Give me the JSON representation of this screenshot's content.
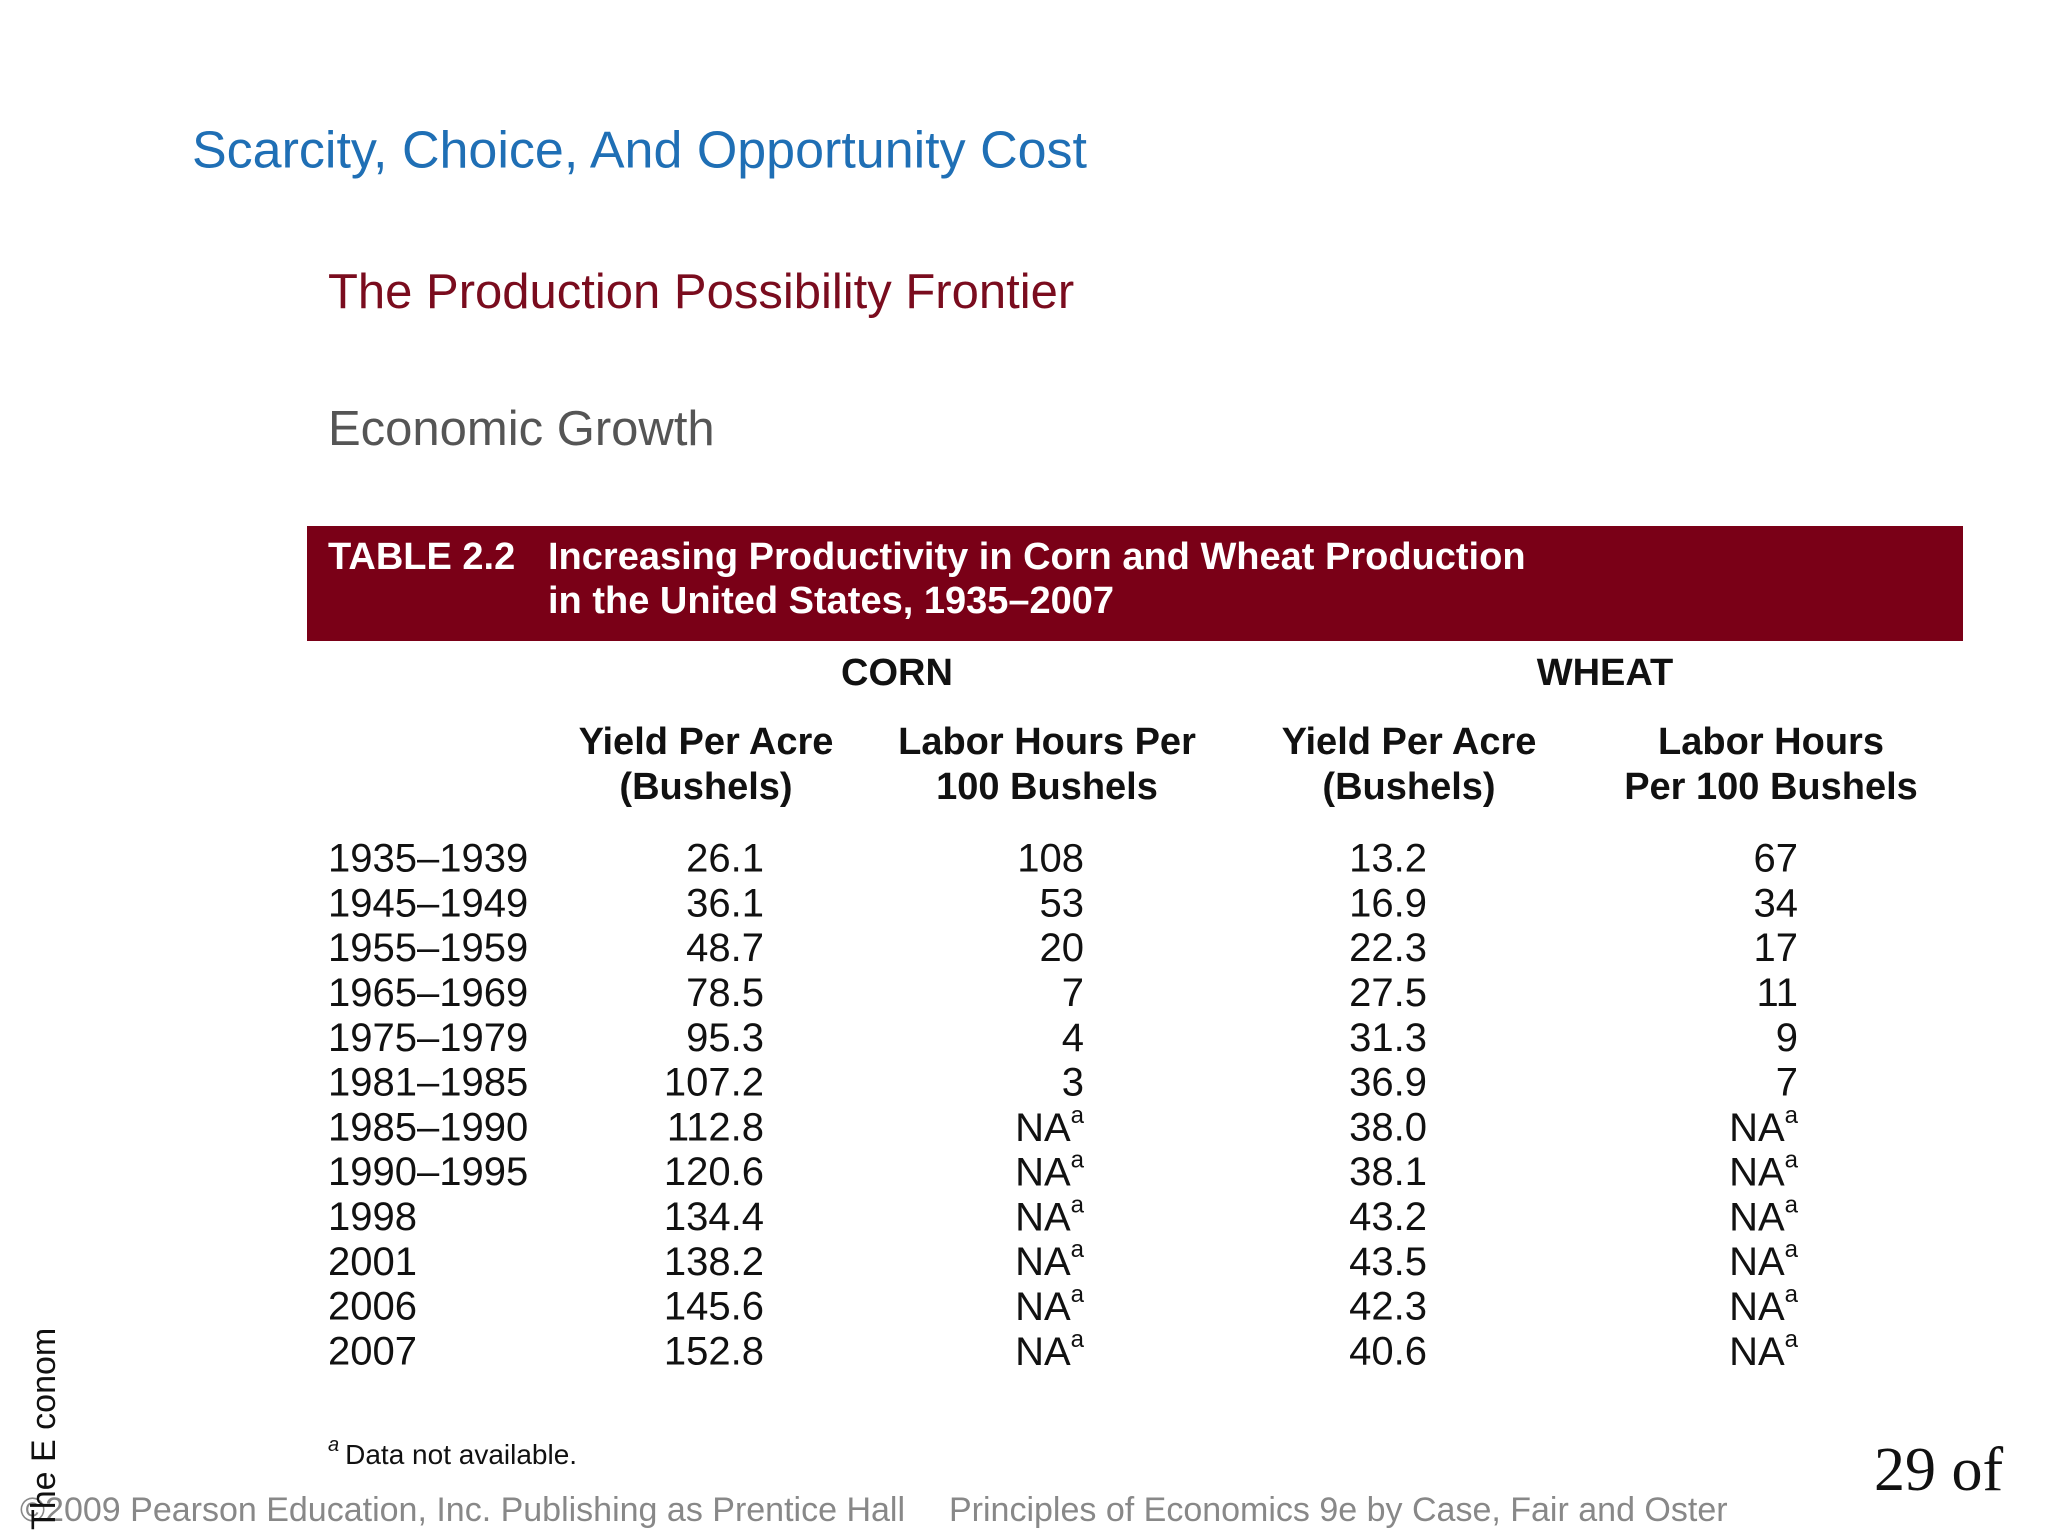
{
  "header": {
    "title": "Scarcity, Choice, And Opportunity Cost",
    "subtitle": "The Production Possibility Frontier",
    "section": "Economic Growth"
  },
  "table": {
    "label": "TABLE 2.2",
    "caption": [
      "Increasing Productivity in Corn and Wheat Production",
      "in the United States, 1935–2007"
    ],
    "groups": [
      "CORN",
      "WHEAT"
    ],
    "columns": [
      [
        "Yield Per Acre",
        "(Bushels)"
      ],
      [
        "Labor Hours Per",
        "100 Bushels"
      ],
      [
        "Yield Per Acre",
        "(Bushels)"
      ],
      [
        "Labor Hours",
        "Per 100 Bushels"
      ]
    ],
    "rows": [
      [
        "1935–1939",
        "26.1",
        "108",
        "13.2",
        "67"
      ],
      [
        "1945–1949",
        "36.1",
        "53",
        "16.9",
        "34"
      ],
      [
        "1955–1959",
        "48.7",
        "20",
        "22.3",
        "17"
      ],
      [
        "1965–1969",
        "78.5",
        "7",
        "27.5",
        "11"
      ],
      [
        "1975–1979",
        "95.3",
        "4",
        "31.3",
        "9"
      ],
      [
        "1981–1985",
        "107.2",
        "3",
        "36.9",
        "7"
      ],
      [
        "1985–1990",
        "112.8",
        {
          "text": "NA",
          "note": "a"
        },
        "38.0",
        {
          "text": "NA",
          "note": "a"
        }
      ],
      [
        "1990–1995",
        "120.6",
        {
          "text": "NA",
          "note": "a"
        },
        "38.1",
        {
          "text": "NA",
          "note": "a"
        }
      ],
      [
        "1998",
        "134.4",
        {
          "text": "NA",
          "note": "a"
        },
        "43.2",
        {
          "text": "NA",
          "note": "a"
        }
      ],
      [
        "2001",
        "138.2",
        {
          "text": "NA",
          "note": "a"
        },
        "43.5",
        {
          "text": "NA",
          "note": "a"
        }
      ],
      [
        "2006",
        "145.6",
        {
          "text": "NA",
          "note": "a"
        },
        "42.3",
        {
          "text": "NA",
          "note": "a"
        }
      ],
      [
        "2007",
        "152.8",
        {
          "text": "NA",
          "note": "a"
        },
        "40.6",
        {
          "text": "NA",
          "note": "a"
        }
      ]
    ],
    "footnote": {
      "marker": "a",
      "text": "Data not available."
    }
  },
  "footer": {
    "copyright": "©2009 Pearson Education, Inc. Publishing as Prentice Hall",
    "book": "Principles of Economics 9e by Case, Fair and Oster",
    "page": "29 of",
    "side": "The E conom"
  }
}
